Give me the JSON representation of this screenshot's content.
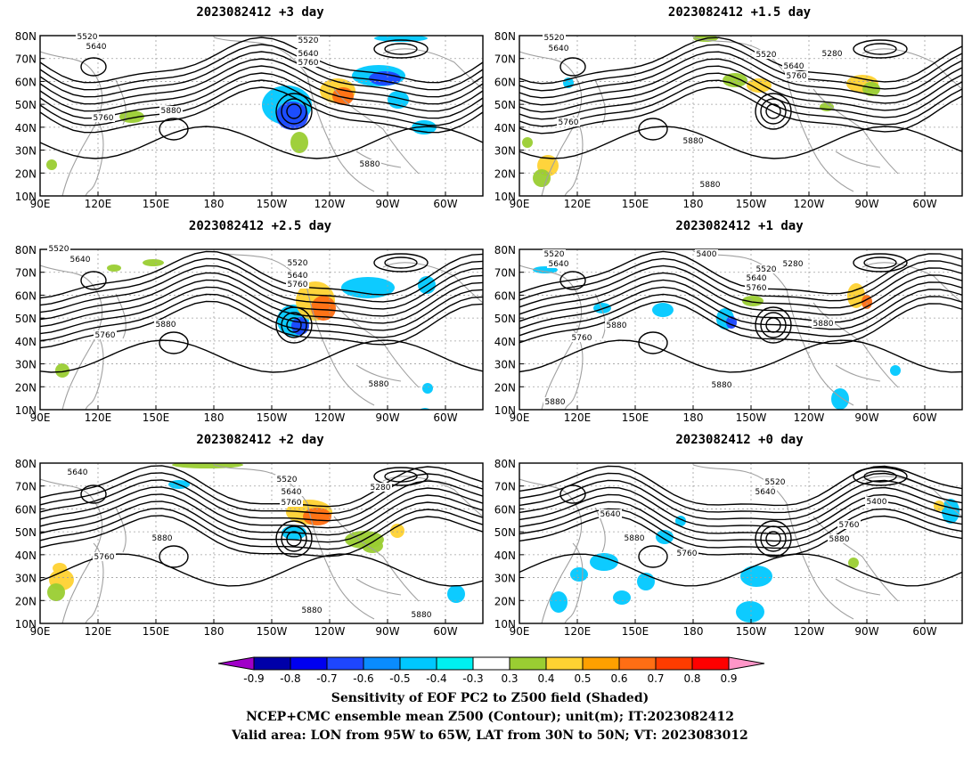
{
  "panels": [
    {
      "title": "2023082412 +3 day",
      "contour_labels": [
        "5520",
        "5640",
        "5520",
        "5640",
        "5760",
        "5760",
        "5880",
        "5880"
      ]
    },
    {
      "title": "2023082412 +1.5 day",
      "contour_labels": [
        "5520",
        "5640",
        "5520",
        "5280",
        "5640",
        "5760",
        "5760",
        "5880",
        "5880"
      ]
    },
    {
      "title": "2023082412 +2.5 day",
      "contour_labels": [
        "5520",
        "5640",
        "5520",
        "5640",
        "5760",
        "5760",
        "5880",
        "5880"
      ]
    },
    {
      "title": "2023082412 +1 day",
      "contour_labels": [
        "5520",
        "5640",
        "5400",
        "5280",
        "5520",
        "5640",
        "5760",
        "5760",
        "5880",
        "5880",
        "5880",
        "5880"
      ]
    },
    {
      "title": "2023082412 +2 day",
      "contour_labels": [
        "5640",
        "5520",
        "5280",
        "5640",
        "5760",
        "5760",
        "5880",
        "5880",
        "5880"
      ]
    },
    {
      "title": "2023082412 +0 day",
      "contour_labels": [
        "5520",
        "5640",
        "5400",
        "5640",
        "5760",
        "5760",
        "5880",
        "5880"
      ]
    }
  ],
  "map": {
    "lat_labels": [
      "80N",
      "70N",
      "60N",
      "50N",
      "40N",
      "30N",
      "20N",
      "10N"
    ],
    "lon_labels": [
      "90E",
      "120E",
      "150E",
      "180",
      "150W",
      "120W",
      "90W",
      "60W"
    ],
    "lon_range": [
      "90E",
      "40W"
    ],
    "lat_range": [
      "10N",
      "80N"
    ]
  },
  "colorbar": {
    "labels": [
      "-0.9",
      "-0.8",
      "-0.7",
      "-0.6",
      "-0.5",
      "-0.4",
      "-0.3",
      "0.3",
      "0.4",
      "0.5",
      "0.6",
      "0.7",
      "0.8",
      "0.9"
    ],
    "colors": [
      "#a000c8",
      "#0000a8",
      "#0000f0",
      "#1e46ff",
      "#0a8cff",
      "#00c8ff",
      "#00f0f0",
      "#ffffff",
      "#9acd32",
      "#ffd232",
      "#ffa000",
      "#ff6e14",
      "#ff3c00",
      "#ff0000",
      "#ff96c8"
    ]
  },
  "captions": [
    "Sensitivity of EOF PC2 to Z500 field (Shaded)",
    "NCEP+CMC ensemble mean Z500 (Contour); unit(m); IT:2023082412",
    "Valid area: LON from 95W to 65W, LAT from 30N to 50N; VT: 2023083012"
  ]
}
